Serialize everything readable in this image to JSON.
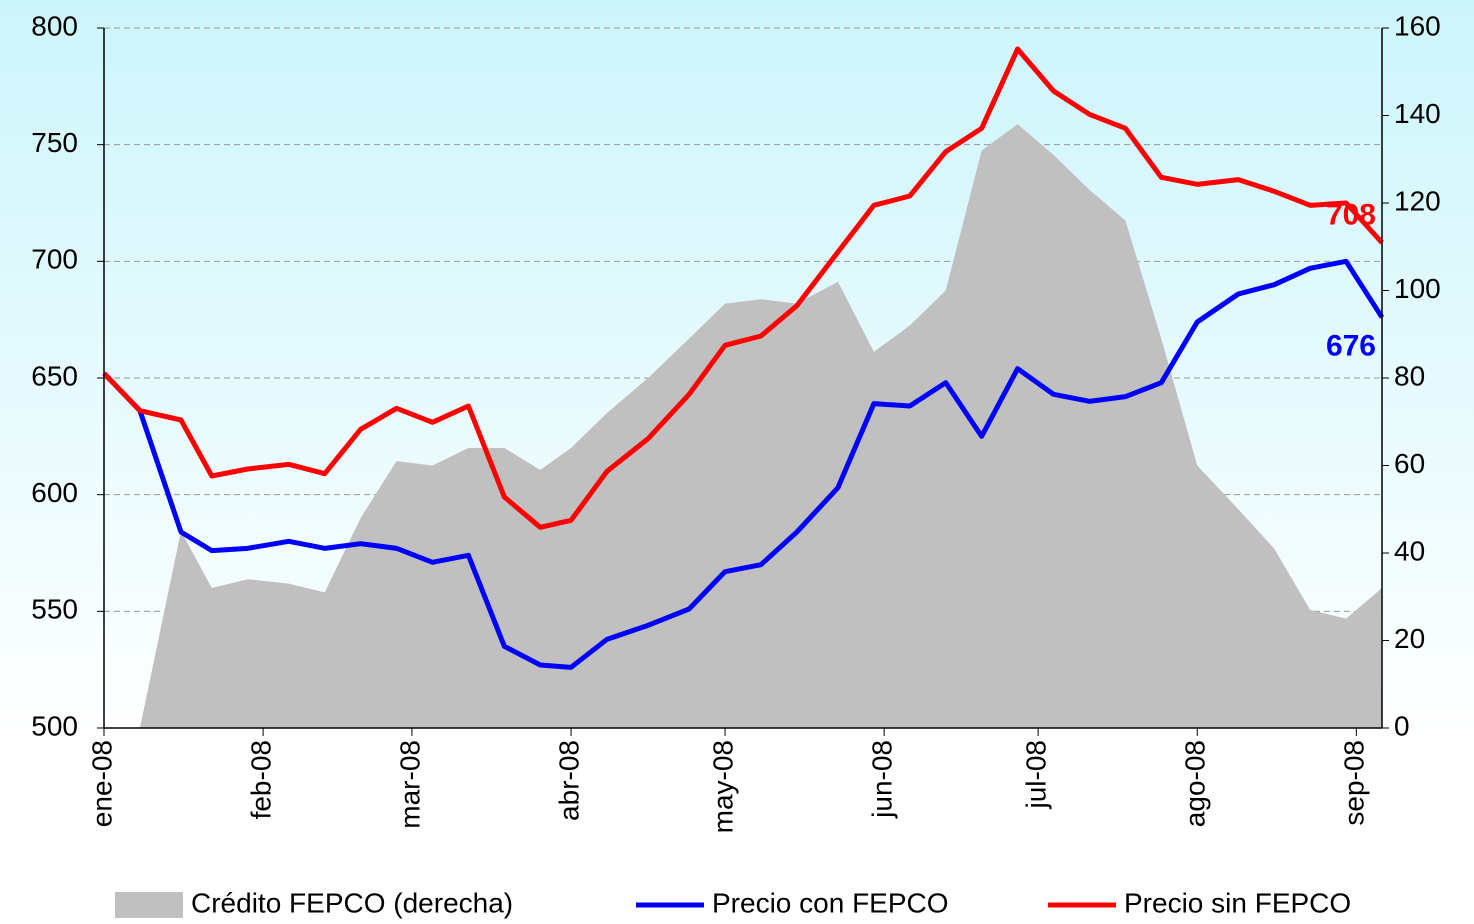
{
  "chart_data": {
    "type": "line",
    "x": [
      0,
      7,
      15,
      21,
      28,
      36,
      43,
      50,
      57,
      64,
      71,
      78,
      85,
      91,
      98,
      106,
      114,
      121,
      128,
      135,
      143,
      150,
      157,
      164,
      171,
      178,
      185,
      192,
      199,
      206,
      213,
      221,
      228,
      235,
      242,
      249
    ],
    "xlim": [
      0,
      249
    ],
    "xticks": [
      {
        "value": 0,
        "label": "ene-08"
      },
      {
        "value": 31,
        "label": "feb-08"
      },
      {
        "value": 60,
        "label": "mar-08"
      },
      {
        "value": 91,
        "label": "abr-08"
      },
      {
        "value": 121,
        "label": "may-08"
      },
      {
        "value": 152,
        "label": "jun-08"
      },
      {
        "value": 182,
        "label": "jul-08"
      },
      {
        "value": 213,
        "label": "ago-08"
      },
      {
        "value": 244,
        "label": "sep-08"
      }
    ],
    "ylim": [
      500,
      800
    ],
    "yticks": [
      500,
      550,
      600,
      650,
      700,
      750,
      800
    ],
    "y2lim": [
      0,
      160
    ],
    "y2ticks": [
      0,
      20,
      40,
      60,
      80,
      100,
      120,
      140,
      160
    ],
    "grid": true,
    "legend": "bottom",
    "series": [
      {
        "name": "Crédito FEPCO (derecha)",
        "type": "area",
        "axis": "y2",
        "color": "#c0c0c0",
        "values": [
          null,
          0,
          45,
          32,
          34,
          33,
          31,
          48,
          61,
          60,
          64,
          64,
          59,
          64,
          72,
          80,
          89,
          97,
          98,
          97,
          102,
          86,
          92,
          100,
          132,
          138,
          131,
          123,
          116,
          89,
          60,
          50,
          41,
          27,
          25,
          32
        ]
      },
      {
        "name": "Precio con FEPCO",
        "type": "line",
        "color": "#0000ff",
        "labeled": [
          35
        ],
        "values": [
          652,
          636,
          584,
          576,
          577,
          580,
          577,
          579,
          577,
          571,
          574,
          535,
          527,
          526,
          538,
          544,
          551,
          567,
          570,
          584,
          603,
          639,
          638,
          648,
          625,
          654,
          643,
          640,
          642,
          648,
          674,
          686,
          690,
          697,
          700,
          676
        ]
      },
      {
        "name": "Precio sin FEPCO",
        "type": "line",
        "color": "#ff0000",
        "labeled": [
          35
        ],
        "values": [
          652,
          636,
          632,
          608,
          611,
          613,
          609,
          628,
          637,
          631,
          638,
          599,
          586,
          589,
          610,
          624,
          643,
          664,
          668,
          681,
          704,
          724,
          728,
          747,
          757,
          791,
          773,
          763,
          757,
          736,
          733,
          735,
          730,
          724,
          725,
          708
        ]
      }
    ]
  }
}
